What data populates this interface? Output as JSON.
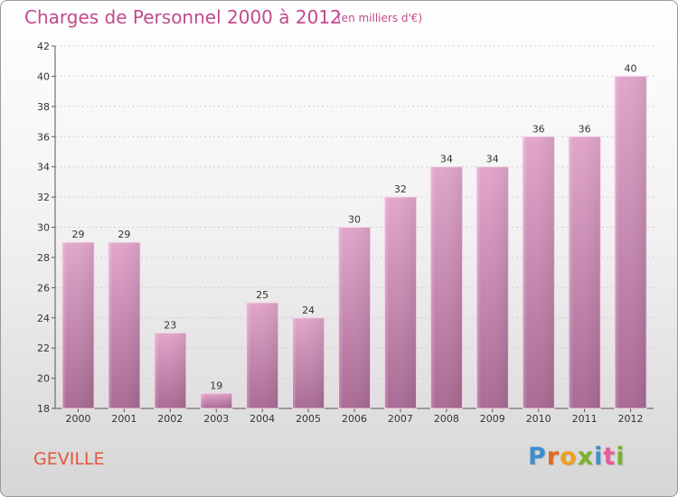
{
  "header": {
    "title": "Charges de Personnel 2000 à 2012",
    "subtitle": "(en milliers d'€)"
  },
  "footer": {
    "commune": "GEVILLE",
    "logo_letters": [
      "P",
      "r",
      "o",
      "x",
      "i",
      "t",
      "i"
    ],
    "logo_colors": [
      "#3d8fd0",
      "#e06b23",
      "#f0a020",
      "#79b32b",
      "#3d8fd0",
      "#e85c9a",
      "#79b32b"
    ]
  },
  "chart_data": {
    "type": "bar",
    "title": "Charges de Personnel 2000 à 2012",
    "subtitle": "(en milliers d'€)",
    "categories": [
      "2000",
      "2001",
      "2002",
      "2003",
      "2004",
      "2005",
      "2006",
      "2007",
      "2008",
      "2009",
      "2010",
      "2011",
      "2012"
    ],
    "values": [
      29,
      29,
      23,
      19,
      25,
      24,
      30,
      32,
      34,
      34,
      36,
      36,
      40
    ],
    "ylim": [
      18,
      42
    ],
    "yticks": [
      18,
      20,
      22,
      24,
      26,
      28,
      30,
      32,
      34,
      36,
      38,
      40,
      42
    ],
    "grid": true,
    "bar_color_top": "#e2a6cb",
    "bar_color_bottom": "#a96b94",
    "accent_color": "#c24a8c"
  }
}
